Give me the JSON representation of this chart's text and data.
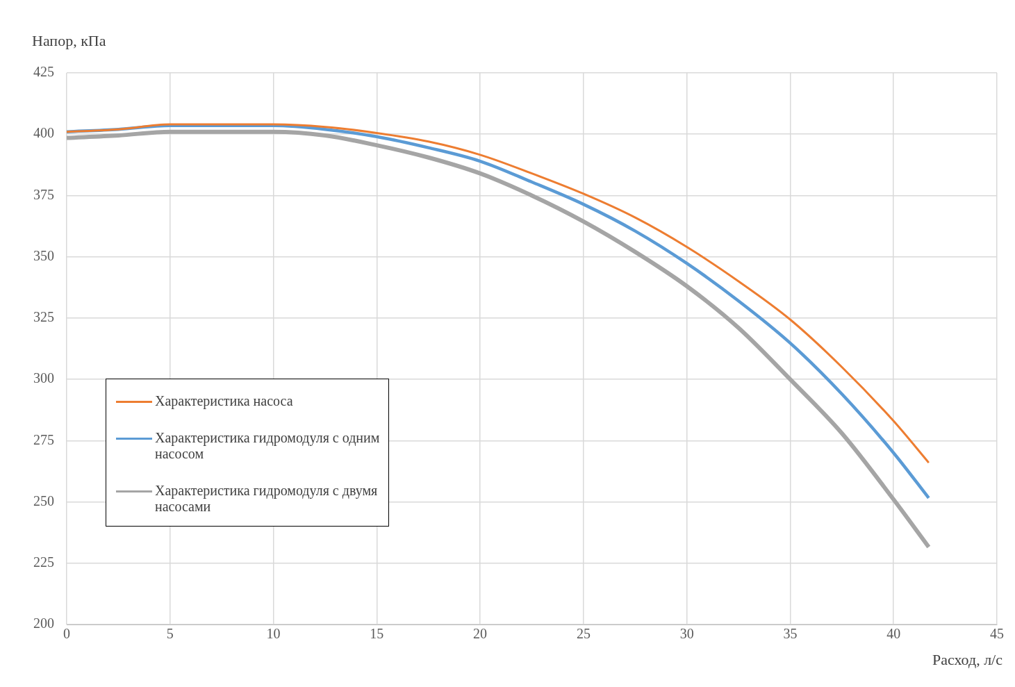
{
  "chart_data": {
    "type": "line",
    "xlabel": "Расход, л/с",
    "ylabel": "Напор, кПа",
    "xlim": [
      0,
      45
    ],
    "xticks": [
      0,
      5,
      10,
      15,
      20,
      25,
      30,
      35,
      40,
      45
    ],
    "ylim": [
      200,
      425
    ],
    "yticks": [
      200,
      225,
      250,
      275,
      300,
      325,
      350,
      375,
      400,
      425
    ],
    "x": [
      0,
      2.5,
      5,
      7.5,
      10,
      12.5,
      15,
      17.5,
      20,
      22.5,
      25,
      27.5,
      30,
      32.5,
      35,
      37.5,
      40,
      41.7
    ],
    "series": [
      {
        "name": "Характеристика насоса",
        "color": "#ed7d31",
        "values": [
          401,
          402,
          404,
          404,
          404,
          403,
          400.5,
          397,
          391.6,
          384,
          375.7,
          366,
          354,
          340,
          324.4,
          305,
          283,
          266
        ]
      },
      {
        "name": "Характеристика гидромодуля с одним насосом",
        "color": "#5b9bd5",
        "values": [
          401,
          402,
          403.5,
          403.5,
          403.5,
          402,
          399,
          394.5,
          389,
          380.5,
          371.4,
          360.5,
          347.3,
          332,
          314.8,
          294,
          270,
          251.6
        ]
      },
      {
        "name": "Характеристика гидромодуля с двумя насосами",
        "color": "#a5a5a5",
        "values": [
          398.5,
          399.5,
          401,
          401,
          401,
          399.5,
          395.5,
          390.5,
          384,
          375,
          364.4,
          352,
          338,
          321,
          300,
          278,
          251,
          231.6
        ]
      }
    ],
    "grid": true,
    "legend": "left",
    "marker": "none",
    "line_style": "solid"
  }
}
